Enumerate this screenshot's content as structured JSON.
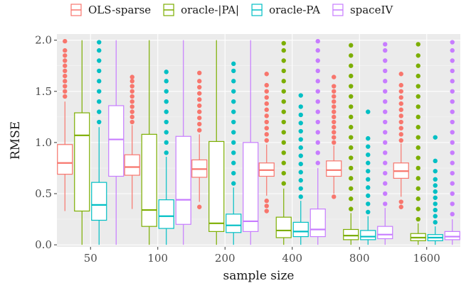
{
  "chart_data": {
    "type": "boxplot",
    "xlabel": "sample size",
    "ylabel": "RMSE",
    "categories": [
      "50",
      "100",
      "200",
      "400",
      "800",
      "1600"
    ],
    "ylim": [
      -0.02,
      2.06
    ],
    "yticks": [
      0.0,
      0.5,
      1.0,
      1.5,
      2.0
    ],
    "ytick_labels": [
      "0.0",
      "0.5",
      "1.0",
      "1.5",
      "2.0"
    ],
    "legend_position": "top",
    "grid": true,
    "series": [
      {
        "name": "OLS-sparse",
        "color": "#F8766D",
        "boxes": [
          {
            "lower": 0.33,
            "q1": 0.69,
            "median": 0.8,
            "q3": 0.98,
            "upper": 1.4,
            "outliers": [
              1.45,
              1.5,
              1.55,
              1.6,
              1.65,
              1.7,
              1.75,
              1.8,
              1.85,
              1.9,
              1.99
            ]
          },
          {
            "lower": 0.35,
            "q1": 0.68,
            "median": 0.76,
            "q3": 0.88,
            "upper": 1.17,
            "outliers": [
              1.2,
              1.25,
              1.3,
              1.35,
              1.4,
              1.45,
              1.5,
              1.55,
              1.6,
              1.64
            ]
          },
          {
            "lower": 0.42,
            "q1": 0.66,
            "median": 0.74,
            "q3": 0.83,
            "upper": 1.08,
            "outliers": [
              0.37,
              1.12,
              1.18,
              1.24,
              1.3,
              1.36,
              1.42,
              1.48,
              1.54,
              1.6,
              1.68
            ]
          },
          {
            "lower": 0.48,
            "q1": 0.67,
            "median": 0.73,
            "q3": 0.8,
            "upper": 0.98,
            "outliers": [
              0.33,
              0.38,
              0.43,
              1.02,
              1.08,
              1.14,
              1.2,
              1.26,
              1.32,
              1.38,
              1.44,
              1.5,
              1.56,
              1.67
            ]
          },
          {
            "lower": 0.5,
            "q1": 0.67,
            "median": 0.73,
            "q3": 0.82,
            "upper": 0.97,
            "outliers": [
              0.47,
              1.0,
              1.05,
              1.1,
              1.15,
              1.2,
              1.25,
              1.3,
              1.35,
              1.4,
              1.45,
              1.5,
              1.55,
              1.64
            ]
          },
          {
            "lower": 0.47,
            "q1": 0.65,
            "median": 0.72,
            "q3": 0.8,
            "upper": 0.99,
            "outliers": [
              0.37,
              0.42,
              1.02,
              1.08,
              1.14,
              1.2,
              1.26,
              1.32,
              1.38,
              1.44,
              1.5,
              1.56,
              1.67
            ]
          }
        ]
      },
      {
        "name": "oracle-|PA|",
        "color": "#7CAE00",
        "boxes": [
          {
            "lower": 0.0,
            "q1": 0.33,
            "median": 1.07,
            "q3": 1.29,
            "upper": 2.0,
            "outliers": []
          },
          {
            "lower": 0.0,
            "q1": 0.18,
            "median": 0.34,
            "q3": 1.08,
            "upper": 2.0,
            "outliers": []
          },
          {
            "lower": 0.0,
            "q1": 0.13,
            "median": 0.21,
            "q3": 1.01,
            "upper": 2.0,
            "outliers": []
          },
          {
            "lower": 0.0,
            "q1": 0.07,
            "median": 0.14,
            "q3": 0.27,
            "upper": 0.55,
            "outliers": [
              0.6,
              0.7,
              0.8,
              0.9,
              1.0,
              1.1,
              1.2,
              1.3,
              1.4,
              1.5,
              1.6,
              1.7,
              1.8,
              1.9,
              1.97
            ]
          },
          {
            "lower": 0.0,
            "q1": 0.05,
            "median": 0.09,
            "q3": 0.15,
            "upper": 0.31,
            "outliers": [
              0.35,
              0.45,
              0.55,
              0.65,
              0.75,
              0.85,
              0.95,
              1.05,
              1.15,
              1.25,
              1.35,
              1.45,
              1.55,
              1.65,
              1.75,
              1.85,
              1.95
            ]
          },
          {
            "lower": 0.0,
            "q1": 0.04,
            "median": 0.07,
            "q3": 0.11,
            "upper": 0.21,
            "outliers": [
              0.25,
              0.35,
              0.45,
              0.55,
              0.65,
              0.75,
              0.85,
              0.95,
              1.05,
              1.15,
              1.25,
              1.35,
              1.45,
              1.55,
              1.65,
              1.75,
              1.85,
              1.96
            ]
          }
        ]
      },
      {
        "name": "oracle-PA",
        "color": "#00BFC4",
        "boxes": [
          {
            "lower": 0.0,
            "q1": 0.24,
            "median": 0.39,
            "q3": 0.61,
            "upper": 1.15,
            "outliers": [
              1.2,
              1.3,
              1.4,
              1.5,
              1.6,
              1.7,
              1.8,
              1.9,
              1.98
            ]
          },
          {
            "lower": 0.0,
            "q1": 0.16,
            "median": 0.28,
            "q3": 0.44,
            "upper": 0.86,
            "outliers": [
              0.9,
              1.0,
              1.1,
              1.2,
              1.3,
              1.4,
              1.5,
              1.6,
              1.69
            ]
          },
          {
            "lower": 0.0,
            "q1": 0.12,
            "median": 0.19,
            "q3": 0.3,
            "upper": 0.56,
            "outliers": [
              0.6,
              0.7,
              0.8,
              0.9,
              1.0,
              1.1,
              1.2,
              1.3,
              1.4,
              1.5,
              1.6,
              1.7,
              1.77
            ]
          },
          {
            "lower": 0.0,
            "q1": 0.08,
            "median": 0.13,
            "q3": 0.22,
            "upper": 0.43,
            "outliers": [
              0.47,
              0.55,
              0.63,
              0.71,
              0.79,
              0.87,
              0.95,
              1.03,
              1.11,
              1.19,
              1.27,
              1.35,
              1.46
            ]
          },
          {
            "lower": 0.0,
            "q1": 0.05,
            "median": 0.08,
            "q3": 0.14,
            "upper": 0.28,
            "outliers": [
              0.32,
              0.4,
              0.48,
              0.56,
              0.64,
              0.72,
              0.8,
              0.88,
              0.96,
              1.04,
              1.3
            ]
          },
          {
            "lower": 0.0,
            "q1": 0.04,
            "median": 0.07,
            "q3": 0.1,
            "upper": 0.18,
            "outliers": [
              0.22,
              0.28,
              0.34,
              0.4,
              0.46,
              0.52,
              0.58,
              0.64,
              0.72,
              0.82,
              1.05
            ]
          }
        ]
      },
      {
        "name": "spaceIV",
        "color": "#C77CFF",
        "boxes": [
          {
            "lower": 0.0,
            "q1": 0.67,
            "median": 1.03,
            "q3": 1.36,
            "upper": 2.0,
            "outliers": []
          },
          {
            "lower": 0.0,
            "q1": 0.2,
            "median": 0.44,
            "q3": 1.06,
            "upper": 2.0,
            "outliers": []
          },
          {
            "lower": 0.0,
            "q1": 0.13,
            "median": 0.23,
            "q3": 1.0,
            "upper": 2.0,
            "outliers": []
          },
          {
            "lower": 0.0,
            "q1": 0.08,
            "median": 0.15,
            "q3": 0.35,
            "upper": 0.75,
            "outliers": [
              0.8,
              0.9,
              1.0,
              1.1,
              1.2,
              1.3,
              1.4,
              1.5,
              1.6,
              1.7,
              1.8,
              1.9,
              1.99
            ]
          },
          {
            "lower": 0.0,
            "q1": 0.06,
            "median": 0.1,
            "q3": 0.18,
            "upper": 0.36,
            "outliers": [
              0.4,
              0.5,
              0.6,
              0.7,
              0.8,
              0.9,
              1.0,
              1.1,
              1.2,
              1.3,
              1.4,
              1.5,
              1.6,
              1.7,
              1.8,
              1.9,
              1.96
            ]
          },
          {
            "lower": 0.0,
            "q1": 0.05,
            "median": 0.08,
            "q3": 0.13,
            "upper": 0.25,
            "outliers": [
              0.3,
              0.4,
              0.5,
              0.6,
              0.7,
              0.8,
              0.9,
              1.0,
              1.1,
              1.2,
              1.3,
              1.4,
              1.5,
              1.6,
              1.7,
              1.8,
              1.9,
              1.98
            ]
          }
        ]
      }
    ]
  }
}
